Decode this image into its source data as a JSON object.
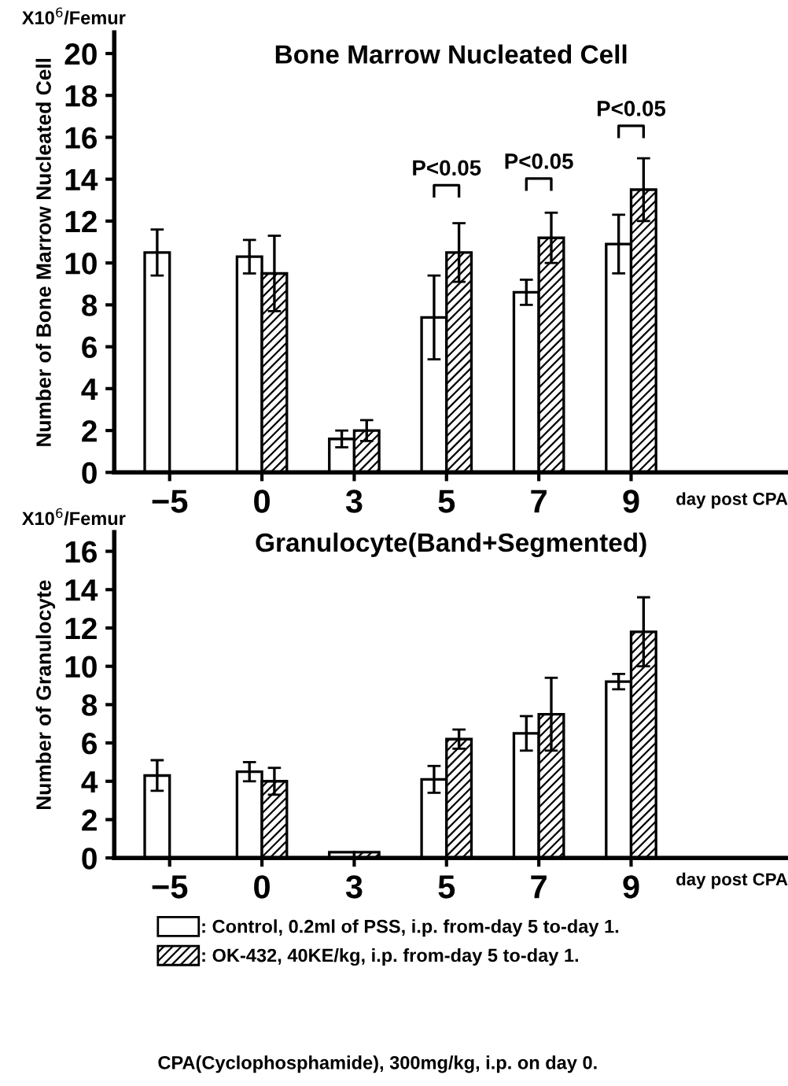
{
  "chart_data": [
    {
      "type": "bar",
      "title": "Bone Marrow Nucleated Cell",
      "ylabel": "Number of Bone Marrow Nucleated Cell",
      "xlabel": "day post CPA",
      "categories": [
        "−5",
        "0",
        "3",
        "5",
        "7",
        "9"
      ],
      "series": [
        {
          "color": "#ffffff",
          "values": [
            10.5,
            10.3,
            1.6,
            7.4,
            8.6,
            10.9
          ],
          "errors": [
            1.1,
            0.8,
            0.4,
            2.0,
            0.6,
            1.4
          ]
        },
        {
          "color": "#000000",
          "values": [
            null,
            9.5,
            2.0,
            10.5,
            11.2,
            13.5
          ],
          "errors": [
            null,
            1.8,
            0.5,
            1.4,
            1.2,
            1.5
          ]
        }
      ],
      "ylim": [
        0,
        21
      ],
      "yticks": [
        0,
        2,
        4,
        6,
        8,
        10,
        12,
        14,
        16,
        18,
        20
      ],
      "grid": false,
      "legend": false,
      "annotations": [
        "X10$^{6}$/Femur",
        "P<0.05",
        "P<0.05",
        "P<0.05"
      ]
    },
    {
      "type": "bar",
      "title": "Granulocyte(Band+Segmented)",
      "ylabel": "Number of Granulocyte",
      "xlabel": "day post CPA",
      "categories": [
        "−5",
        "0",
        "3",
        "5",
        "7",
        "9"
      ],
      "series": [
        {
          "name": ": Control, 0.2ml of PSS, i.p. from-day 5 to-day 1.",
          "color": "#ffffff",
          "values": [
            4.3,
            4.5,
            0.3,
            4.1,
            6.5,
            9.2
          ],
          "errors": [
            0.8,
            0.5,
            null,
            0.7,
            0.9,
            0.4
          ]
        },
        {
          "name": ": OK-432, 40KE/kg, i.p. from-day 5 to-day 1.",
          "color": "#000000",
          "values": [
            null,
            4.0,
            0.3,
            6.2,
            7.5,
            11.8
          ],
          "errors": [
            null,
            0.7,
            null,
            0.5,
            1.9,
            1.8
          ]
        }
      ],
      "ylim": [
        0,
        17
      ],
      "yticks": [
        0,
        2,
        4,
        6,
        8,
        10,
        12,
        14,
        16
      ],
      "grid": false,
      "legend": "bottom",
      "annotations": [
        "X10$^{6}$/Femur",
        "CPA(Cyclophosphamide), 300mg/kg, i.p. on day 0."
      ]
    }
  ]
}
